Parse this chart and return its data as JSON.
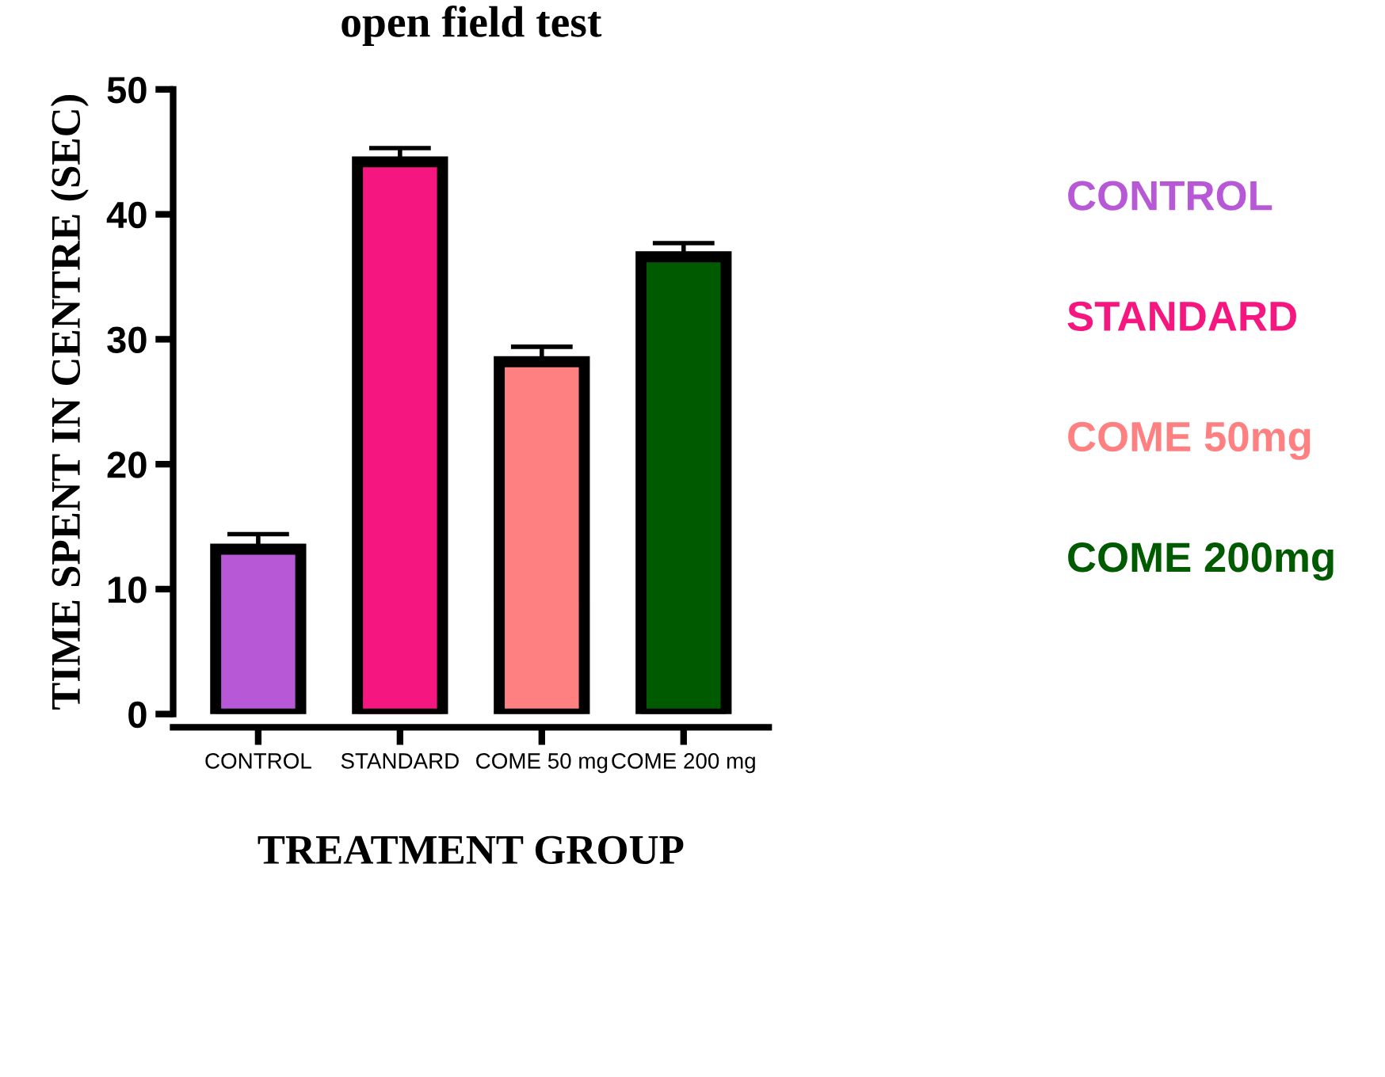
{
  "chart_data": {
    "type": "bar",
    "title": "open field test",
    "xlabel": "TREATMENT GROUP",
    "ylabel": "TIME SPENT IN CENTRE (SEC)",
    "categories": [
      "CONTROL",
      "STANDARD",
      "COME 50 mg",
      "COME 200 mg"
    ],
    "series": [
      {
        "name": "CONTROL",
        "color": "#b759d6",
        "values": [
          13.2,
          null,
          null,
          null
        ],
        "errors": [
          [
            13.2,
            14.4
          ],
          null,
          null,
          null
        ]
      },
      {
        "name": "STANDARD",
        "color": "#f5177f",
        "values": [
          null,
          44.2,
          null,
          null
        ],
        "errors": [
          null,
          [
            44.2,
            45.3
          ],
          null,
          null
        ]
      },
      {
        "name": "COME 50mg",
        "color": "#fe8080",
        "values": [
          null,
          null,
          28.2,
          null
        ],
        "errors": [
          null,
          null,
          [
            28.2,
            29.4
          ],
          null
        ]
      },
      {
        "name": "COME 200mg",
        "color": "#005a00",
        "values": [
          null,
          null,
          null,
          36.6
        ],
        "errors": [
          null,
          null,
          null,
          [
            36.6,
            37.7
          ]
        ]
      }
    ],
    "ylim": [
      0,
      50
    ],
    "yticks": [
      0,
      10,
      20,
      30,
      40,
      50
    ],
    "grid": false,
    "legend": "right"
  }
}
